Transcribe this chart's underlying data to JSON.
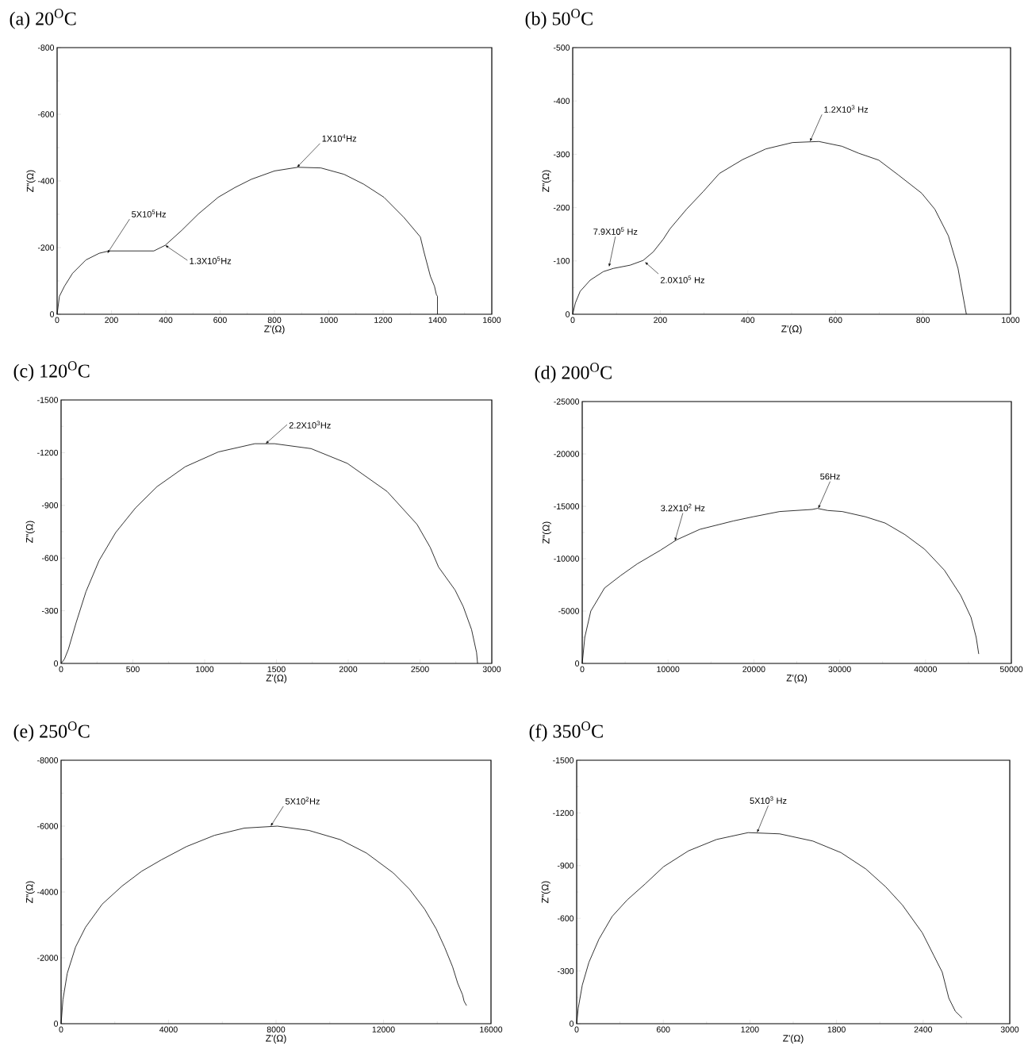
{
  "chart_data": [
    {
      "type": "line",
      "title": "(a) 20$^{O}$C",
      "xlabel": "Z'(Ω)",
      "ylabel": "Z\"(Ω)",
      "color": "#000000",
      "x": [
        0,
        8.5,
        27,
        57,
        106,
        155,
        191,
        252,
        356,
        398,
        459,
        520,
        593,
        654,
        715,
        800,
        886,
        971,
        1056,
        1129,
        1203,
        1276,
        1337,
        1350,
        1374,
        1389,
        1396,
        1400,
        1400
      ],
      "values": [
        0,
        -54,
        -84,
        -123,
        -163,
        -183,
        -190,
        -190,
        -190,
        -207,
        -252,
        -301,
        -351,
        -380,
        -405,
        -430,
        -441,
        -439,
        -420,
        -390,
        -351,
        -291,
        -232,
        -188,
        -114,
        -84,
        -59,
        -54,
        0
      ],
      "xlim": [
        0,
        1600
      ],
      "ylim": [
        0,
        -800
      ],
      "xticks": [
        0,
        200,
        400,
        600,
        800,
        1000,
        1200,
        1400,
        1600
      ],
      "yticks": [
        0,
        -200,
        -400,
        -600,
        -800
      ],
      "annotations": [
        {
          "text": "5X10$^{5}$Hz",
          "x": 185,
          "y": -183
        },
        {
          "text": "1.3X10$^{5}$Hz",
          "x": 398,
          "y": -207
        },
        {
          "text": "1X10$^{4}$Hz",
          "x": 883,
          "y": -441
        }
      ]
    },
    {
      "type": "line",
      "title": "(b) 50$^{O}$C",
      "xlabel": "Z'(Ω)",
      "ylabel": "Z\"(Ω)",
      "color": "#000000",
      "x": [
        0,
        6,
        17,
        40,
        70,
        93,
        131,
        161,
        184,
        207,
        222,
        260,
        298,
        335,
        388,
        441,
        502,
        562,
        615,
        653,
        699,
        744,
        797,
        827,
        858,
        880,
        895,
        899
      ],
      "values": [
        0,
        -21,
        -43,
        -64,
        -80,
        -86,
        -92,
        -101,
        -117,
        -141,
        -160,
        -197,
        -230,
        -264,
        -290,
        -310,
        -322,
        -324,
        -315,
        -302,
        -289,
        -261,
        -227,
        -197,
        -147,
        -86,
        -18,
        0
      ],
      "xlim": [
        0,
        1000
      ],
      "ylim": [
        0,
        -500
      ],
      "xticks": [
        0,
        200,
        400,
        600,
        800,
        1000
      ],
      "yticks": [
        0,
        -100,
        -200,
        -300,
        -400,
        -500
      ],
      "annotations": [
        {
          "text": "7.9X10$^{5}$ Hz",
          "x": 83,
          "y": -89
        },
        {
          "text": "2.0X10$^{5}$ Hz",
          "x": 165,
          "y": -98
        },
        {
          "text": "1.2X10$^{3}$ Hz",
          "x": 542,
          "y": -324
        }
      ]
    },
    {
      "type": "line",
      "title": "(c) 120$^{O}$C",
      "xlabel": "Z'(Ω)",
      "ylabel": "Z\"(Ω)",
      "color": "#000000",
      "x": [
        0,
        23,
        51,
        104,
        173,
        265,
        380,
        519,
        669,
        865,
        1095,
        1349,
        1487,
        1741,
        1994,
        2271,
        2479,
        2571,
        2629,
        2744,
        2801,
        2859,
        2894,
        2901
      ],
      "values": [
        0,
        -24,
        -81,
        -230,
        -408,
        -586,
        -745,
        -886,
        -1007,
        -1120,
        -1204,
        -1251,
        -1251,
        -1223,
        -1139,
        -979,
        -792,
        -661,
        -549,
        -418,
        -324,
        -193,
        -62,
        0
      ],
      "xlim": [
        0,
        3000
      ],
      "ylim": [
        0,
        -1500
      ],
      "xticks": [
        0,
        500,
        1000,
        1500,
        2000,
        2500,
        3000
      ],
      "yticks": [
        0,
        -300,
        -600,
        -900,
        -1200,
        -1500
      ],
      "annotations": [
        {
          "text": "2.2X10$^{3}$Hz",
          "x": 1425,
          "y": -1251
        }
      ]
    },
    {
      "type": "line",
      "title": "(d) 200$^{O}$C",
      "xlabel": "Z'(Ω)",
      "ylabel": "Z\"(Ω)",
      "color": "#000000",
      "x": [
        0,
        300,
        1000,
        2600,
        4500,
        6400,
        9100,
        11000,
        13700,
        17600,
        19900,
        23000,
        26800,
        27400,
        28600,
        30300,
        33000,
        35300,
        37600,
        39900,
        42200,
        44100,
        45300,
        45900,
        46200
      ],
      "values": [
        0,
        -2500,
        -5000,
        -7200,
        -8400,
        -9500,
        -10800,
        -11800,
        -12800,
        -13600,
        -14000,
        -14500,
        -14700,
        -14800,
        -14600,
        -14500,
        -14000,
        -13400,
        -12300,
        -10900,
        -8900,
        -6500,
        -4400,
        -2500,
        -900
      ],
      "xlim": [
        0,
        50000
      ],
      "ylim": [
        0,
        -25000
      ],
      "xticks": [
        0,
        10000,
        20000,
        30000,
        40000,
        50000
      ],
      "yticks": [
        0,
        -5000,
        -10000,
        -15000,
        -20000,
        -25000
      ],
      "annotations": [
        {
          "text": "3.2X10$^{2}$ Hz",
          "x": 10800,
          "y": -11700
        },
        {
          "text": "56Hz",
          "x": 27500,
          "y": -14800
        }
      ]
    },
    {
      "type": "line",
      "title": "(e) 250$^{O}$C",
      "xlabel": "Z'(Ω)",
      "ylabel": "Z\"(Ω)",
      "color": "#000000",
      "x": [
        0,
        70,
        230,
        540,
        910,
        1530,
        2270,
        3000,
        3740,
        4670,
        5710,
        6820,
        8050,
        9220,
        10390,
        11370,
        12360,
        12970,
        13530,
        13960,
        14270,
        14570,
        14760,
        14940,
        15000,
        15090
      ],
      "values": [
        0,
        -730,
        -1530,
        -2330,
        -2930,
        -3630,
        -4180,
        -4630,
        -4980,
        -5380,
        -5720,
        -5940,
        -6000,
        -5870,
        -5590,
        -5180,
        -4580,
        -4080,
        -3480,
        -2880,
        -2330,
        -1730,
        -1230,
        -880,
        -680,
        -550
      ],
      "xlim": [
        0,
        16000
      ],
      "ylim": [
        0,
        -8000
      ],
      "xticks": [
        0,
        4000,
        8000,
        12000,
        16000
      ],
      "yticks": [
        0,
        -2000,
        -4000,
        -6000,
        -8000
      ],
      "annotations": [
        {
          "text": "5X10$^{2}$Hz",
          "x": 7800,
          "y": -6000
        }
      ]
    },
    {
      "type": "line",
      "title": "(f) 350$^{O}$C",
      "xlabel": "Z'(Ω)",
      "ylabel": "Z\"(Ω)",
      "color": "#000000",
      "x": [
        0,
        11,
        39,
        85,
        154,
        246,
        349,
        476,
        602,
        774,
        969,
        1188,
        1406,
        1636,
        1831,
        2003,
        2141,
        2256,
        2394,
        2474,
        2532,
        2578,
        2623,
        2669
      ],
      "values": [
        0,
        -89,
        -220,
        -350,
        -481,
        -611,
        -704,
        -797,
        -894,
        -984,
        -1049,
        -1088,
        -1081,
        -1040,
        -974,
        -881,
        -779,
        -676,
        -518,
        -388,
        -294,
        -145,
        -71,
        -34
      ],
      "xlim": [
        0,
        3000
      ],
      "ylim": [
        0,
        -1500
      ],
      "xticks": [
        0,
        600,
        1200,
        1800,
        2400,
        3000
      ],
      "yticks": [
        0,
        -300,
        -600,
        -900,
        -1200,
        -1500
      ],
      "annotations": [
        {
          "text": "5X10$^{3}$ Hz",
          "x": 1250,
          "y": -1088
        }
      ]
    }
  ]
}
